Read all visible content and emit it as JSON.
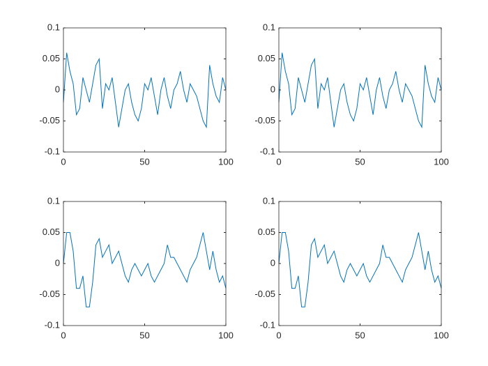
{
  "chart_data": [
    {
      "type": "line",
      "x": [
        0,
        2,
        4,
        6,
        8,
        10,
        12,
        14,
        16,
        18,
        20,
        22,
        24,
        26,
        28,
        30,
        32,
        34,
        36,
        38,
        40,
        42,
        44,
        46,
        48,
        50,
        52,
        54,
        56,
        58,
        60,
        62,
        64,
        66,
        68,
        70,
        72,
        74,
        76,
        78,
        80,
        82,
        84,
        86,
        88,
        90,
        92,
        94,
        96,
        98,
        100
      ],
      "series": [
        {
          "color": "#0072bd",
          "values": [
            -0.02,
            0.06,
            0.03,
            0.01,
            -0.04,
            -0.03,
            0.02,
            0.0,
            -0.02,
            0.01,
            0.04,
            0.05,
            -0.03,
            0.01,
            0.0,
            0.02,
            -0.02,
            -0.06,
            -0.03,
            0.0,
            0.01,
            -0.02,
            -0.04,
            -0.05,
            -0.03,
            0.01,
            0.0,
            0.02,
            -0.01,
            -0.04,
            0.0,
            0.02,
            -0.01,
            -0.03,
            0.0,
            0.01,
            0.03,
            0.0,
            -0.02,
            0.01,
            0.0,
            -0.01,
            -0.03,
            -0.05,
            -0.06,
            0.04,
            0.01,
            -0.01,
            -0.02,
            0.02,
            0.0
          ]
        }
      ],
      "xlim": [
        0,
        100
      ],
      "xticks": [
        0,
        50,
        100
      ],
      "ylim": [
        -0.1,
        0.1
      ],
      "yticks": [
        -0.1,
        -0.05,
        0,
        0.05,
        0.1
      ]
    },
    {
      "type": "line",
      "x": [
        0,
        2,
        4,
        6,
        8,
        10,
        12,
        14,
        16,
        18,
        20,
        22,
        24,
        26,
        28,
        30,
        32,
        34,
        36,
        38,
        40,
        42,
        44,
        46,
        48,
        50,
        52,
        54,
        56,
        58,
        60,
        62,
        64,
        66,
        68,
        70,
        72,
        74,
        76,
        78,
        80,
        82,
        84,
        86,
        88,
        90,
        92,
        94,
        96,
        98,
        100
      ],
      "series": [
        {
          "color": "#0072bd",
          "values": [
            -0.02,
            0.06,
            0.03,
            0.01,
            -0.04,
            -0.03,
            0.02,
            0.0,
            -0.02,
            0.01,
            0.04,
            0.05,
            -0.03,
            0.01,
            0.0,
            0.02,
            -0.02,
            -0.06,
            -0.03,
            0.0,
            0.01,
            -0.02,
            -0.04,
            -0.05,
            -0.03,
            0.01,
            0.0,
            0.02,
            -0.01,
            -0.04,
            0.0,
            0.02,
            -0.01,
            -0.03,
            0.0,
            0.01,
            0.03,
            0.0,
            -0.02,
            0.01,
            0.0,
            -0.01,
            -0.03,
            -0.05,
            -0.06,
            0.04,
            0.01,
            -0.01,
            -0.02,
            0.02,
            0.0
          ]
        }
      ],
      "xlim": [
        0,
        100
      ],
      "xticks": [
        0,
        50,
        100
      ],
      "ylim": [
        -0.1,
        0.1
      ],
      "yticks": [
        -0.1,
        -0.05,
        0,
        0.05,
        0.1
      ]
    },
    {
      "type": "line",
      "x": [
        0,
        2,
        4,
        6,
        8,
        10,
        12,
        14,
        16,
        18,
        20,
        22,
        24,
        26,
        28,
        30,
        32,
        34,
        36,
        38,
        40,
        42,
        44,
        46,
        48,
        50,
        52,
        54,
        56,
        58,
        60,
        62,
        64,
        66,
        68,
        70,
        72,
        74,
        76,
        78,
        80,
        82,
        84,
        86,
        88,
        90,
        92,
        94,
        96,
        98,
        100
      ],
      "series": [
        {
          "color": "#0072bd",
          "values": [
            0.0,
            0.05,
            0.05,
            0.02,
            -0.04,
            -0.04,
            -0.02,
            -0.07,
            -0.07,
            -0.03,
            0.03,
            0.04,
            0.01,
            0.02,
            0.03,
            0.0,
            0.01,
            0.02,
            0.0,
            -0.02,
            -0.03,
            -0.01,
            0.0,
            -0.01,
            -0.02,
            -0.01,
            0.0,
            -0.02,
            -0.03,
            -0.02,
            -0.01,
            0.0,
            0.03,
            0.01,
            0.01,
            0.0,
            -0.01,
            -0.02,
            -0.03,
            -0.01,
            0.0,
            0.01,
            0.03,
            0.05,
            0.02,
            -0.01,
            0.02,
            -0.01,
            -0.03,
            -0.02,
            -0.04
          ]
        }
      ],
      "xlim": [
        0,
        100
      ],
      "xticks": [
        0,
        50,
        100
      ],
      "ylim": [
        -0.1,
        0.1
      ],
      "yticks": [
        -0.1,
        -0.05,
        0,
        0.05,
        0.1
      ]
    },
    {
      "type": "line",
      "x": [
        0,
        2,
        4,
        6,
        8,
        10,
        12,
        14,
        16,
        18,
        20,
        22,
        24,
        26,
        28,
        30,
        32,
        34,
        36,
        38,
        40,
        42,
        44,
        46,
        48,
        50,
        52,
        54,
        56,
        58,
        60,
        62,
        64,
        66,
        68,
        70,
        72,
        74,
        76,
        78,
        80,
        82,
        84,
        86,
        88,
        90,
        92,
        94,
        96,
        98,
        100
      ],
      "series": [
        {
          "color": "#0072bd",
          "values": [
            0.0,
            0.05,
            0.05,
            0.02,
            -0.04,
            -0.04,
            -0.02,
            -0.07,
            -0.07,
            -0.03,
            0.03,
            0.04,
            0.01,
            0.02,
            0.03,
            0.0,
            0.01,
            0.02,
            0.0,
            -0.02,
            -0.03,
            -0.01,
            0.0,
            -0.01,
            -0.02,
            -0.01,
            0.0,
            -0.02,
            -0.03,
            -0.02,
            -0.01,
            0.0,
            0.03,
            0.01,
            0.01,
            0.0,
            -0.01,
            -0.02,
            -0.03,
            -0.01,
            0.0,
            0.01,
            0.03,
            0.05,
            0.02,
            -0.01,
            0.02,
            -0.01,
            -0.03,
            -0.02,
            -0.04
          ]
        }
      ],
      "xlim": [
        0,
        100
      ],
      "xticks": [
        0,
        50,
        100
      ],
      "ylim": [
        -0.1,
        0.1
      ],
      "yticks": [
        -0.1,
        -0.05,
        0,
        0.05,
        0.1
      ]
    }
  ]
}
